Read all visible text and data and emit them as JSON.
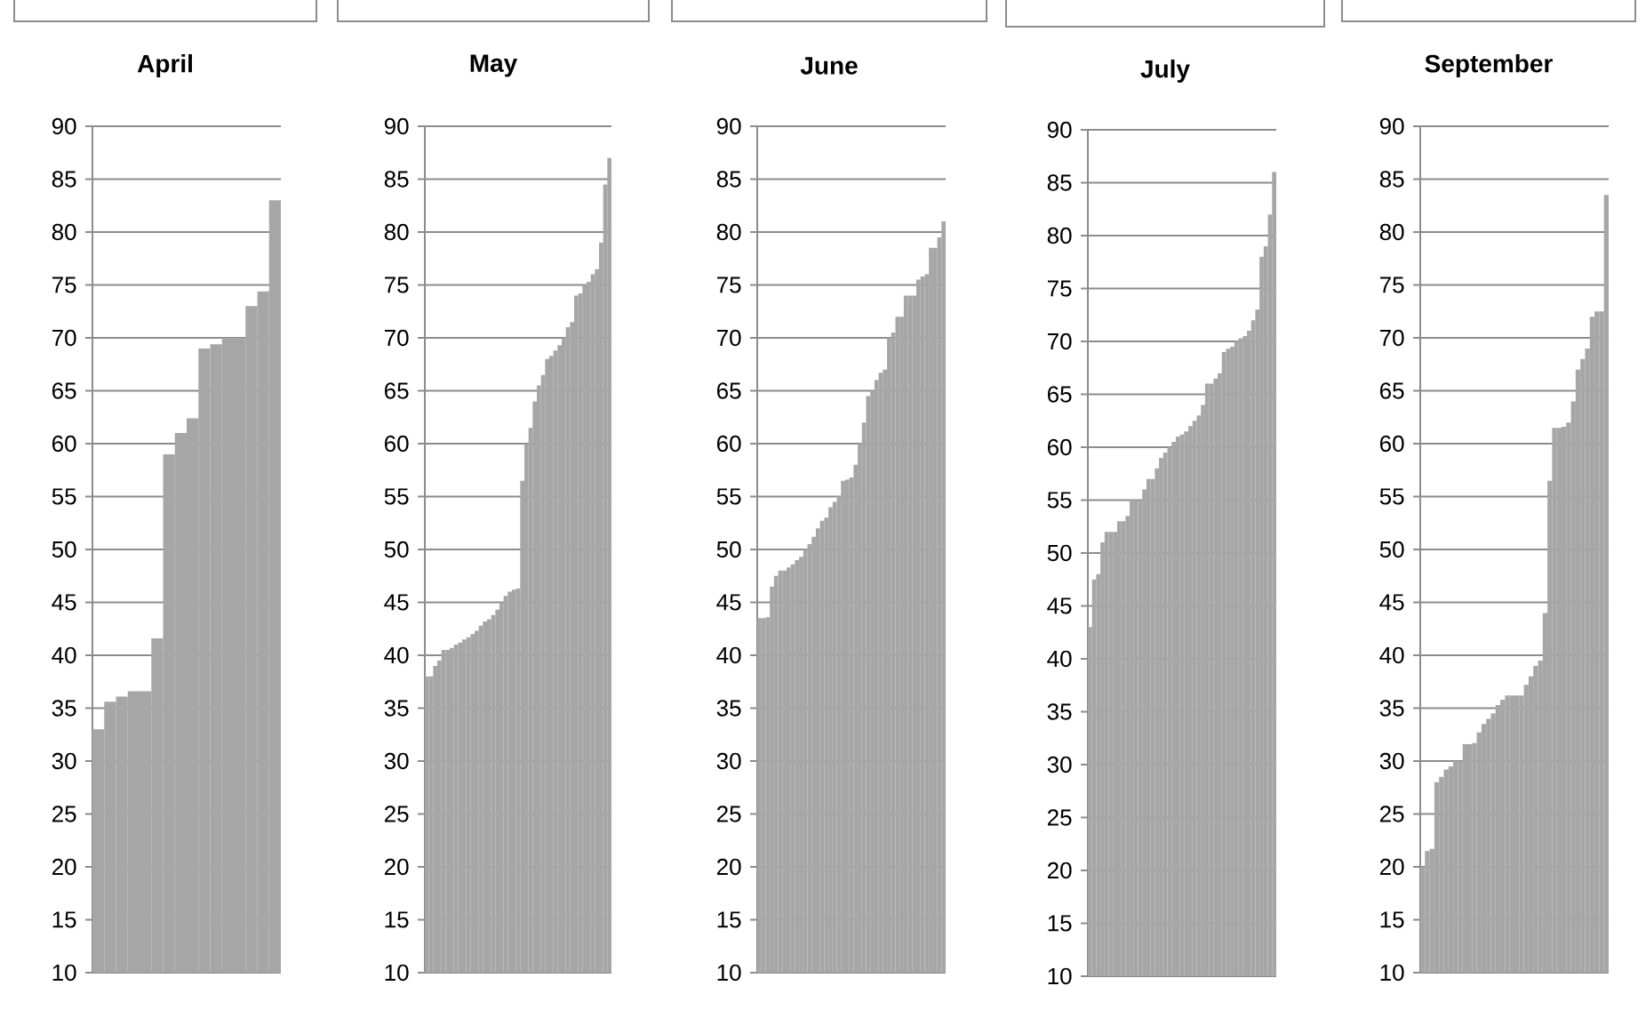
{
  "chart_data": [
    {
      "type": "bar",
      "title": "April",
      "categories": [
        null,
        null,
        null,
        null,
        null,
        null,
        null,
        null,
        null,
        null,
        null,
        null,
        null,
        null,
        null,
        null
      ],
      "values": [
        33,
        35.6,
        36.1,
        36.6,
        36.6,
        41.6,
        59,
        61,
        62.4,
        69,
        69.4,
        70,
        70,
        73,
        74.4,
        83
      ],
      "color": "#a6a6a6",
      "ylim": [
        10,
        90
      ],
      "yticks": [
        10,
        15,
        20,
        25,
        30,
        35,
        40,
        45,
        50,
        55,
        60,
        65,
        70,
        75,
        80,
        85,
        90
      ],
      "grid": "y"
    },
    {
      "type": "bar",
      "title": "May",
      "categories": [
        null,
        null,
        null,
        null,
        null,
        null,
        null,
        null,
        null,
        null,
        null,
        null,
        null,
        null,
        null,
        null,
        null,
        null,
        null,
        null,
        null,
        null,
        null,
        null,
        null,
        null,
        null,
        null,
        null,
        null,
        null,
        null,
        null,
        null,
        null,
        null,
        null,
        null,
        null,
        null,
        null,
        null,
        null,
        null,
        null
      ],
      "values": [
        38,
        38,
        39,
        39.5,
        40.5,
        40.5,
        40.7,
        41,
        41.2,
        41.5,
        41.7,
        42,
        42.3,
        42.8,
        43.2,
        43.4,
        43.8,
        44.3,
        45,
        45.6,
        46,
        46.2,
        46.3,
        56.5,
        60,
        61.5,
        64,
        65.5,
        66.5,
        68,
        68.3,
        68.8,
        69.3,
        70,
        71,
        71.5,
        74,
        74.2,
        75,
        75.3,
        76,
        76.5,
        79,
        84.5,
        87
      ],
      "color": "#a6a6a6",
      "ylim": [
        10,
        90
      ],
      "yticks": [
        10,
        15,
        20,
        25,
        30,
        35,
        40,
        45,
        50,
        55,
        60,
        65,
        70,
        75,
        80,
        85,
        90
      ],
      "grid": "y"
    },
    {
      "type": "bar",
      "title": "June",
      "categories": [
        null,
        null,
        null,
        null,
        null,
        null,
        null,
        null,
        null,
        null,
        null,
        null,
        null,
        null,
        null,
        null,
        null,
        null,
        null,
        null,
        null,
        null,
        null,
        null,
        null,
        null,
        null,
        null,
        null,
        null,
        null,
        null,
        null,
        null,
        null,
        null,
        null,
        null,
        null,
        null,
        null,
        null,
        null,
        null,
        null
      ],
      "values": [
        43.5,
        43.5,
        43.6,
        46.5,
        47.5,
        48,
        48,
        48.3,
        48.6,
        49,
        49.3,
        50,
        50.5,
        51.2,
        52,
        52.7,
        53,
        54,
        54.5,
        55,
        56.5,
        56.6,
        56.8,
        58,
        60,
        62,
        64.5,
        65,
        66,
        66.7,
        67,
        70,
        70.5,
        72,
        72,
        74,
        74,
        74,
        75.5,
        75.8,
        76,
        78.5,
        78.5,
        79.5,
        81
      ],
      "color": "#a6a6a6",
      "ylim": [
        10,
        90
      ],
      "yticks": [
        10,
        15,
        20,
        25,
        30,
        35,
        40,
        45,
        50,
        55,
        60,
        65,
        70,
        75,
        80,
        85,
        90
      ],
      "grid": "y"
    },
    {
      "type": "bar",
      "title": "July",
      "categories": [
        null,
        null,
        null,
        null,
        null,
        null,
        null,
        null,
        null,
        null,
        null,
        null,
        null,
        null,
        null,
        null,
        null,
        null,
        null,
        null,
        null,
        null,
        null,
        null,
        null,
        null,
        null,
        null,
        null,
        null,
        null,
        null,
        null,
        null,
        null,
        null,
        null,
        null,
        null,
        null,
        null,
        null,
        null,
        null,
        null
      ],
      "values": [
        43,
        47.5,
        48,
        51,
        52,
        52,
        52,
        53,
        53,
        53.5,
        55,
        55,
        55,
        56,
        57,
        57,
        58,
        59,
        59.5,
        60,
        60.5,
        61,
        61.2,
        61.5,
        62,
        62.5,
        63,
        64,
        66,
        66,
        66.5,
        67,
        69,
        69.3,
        69.5,
        70,
        70.3,
        70.5,
        71,
        72,
        73,
        78,
        79,
        82,
        86
      ],
      "color": "#a6a6a6",
      "ylim": [
        10,
        90
      ],
      "yticks": [
        10,
        15,
        20,
        25,
        30,
        35,
        40,
        45,
        50,
        55,
        60,
        65,
        70,
        75,
        80,
        85,
        90
      ],
      "grid": "y"
    },
    {
      "type": "bar",
      "title": "September",
      "categories": [
        null,
        null,
        null,
        null,
        null,
        null,
        null,
        null,
        null,
        null,
        null,
        null,
        null,
        null,
        null,
        null,
        null,
        null,
        null,
        null,
        null,
        null,
        null,
        null,
        null,
        null,
        null,
        null,
        null,
        null,
        null,
        null,
        null,
        null,
        null,
        null,
        null,
        null,
        null,
        null
      ],
      "values": [
        20,
        21.5,
        21.7,
        28,
        28.5,
        29.2,
        29.5,
        30,
        30,
        31.6,
        31.6,
        31.7,
        32.7,
        33.5,
        34,
        34.5,
        35.3,
        35.8,
        36.2,
        36.2,
        36.2,
        36.2,
        37.2,
        38,
        39,
        39.5,
        44,
        56.5,
        61.5,
        61.5,
        61.6,
        62,
        64,
        67,
        68,
        69,
        72,
        72.5,
        72.5,
        83.5
      ],
      "color": "#a6a6a6",
      "ylim": [
        10,
        90
      ],
      "yticks": [
        10,
        15,
        20,
        25,
        30,
        35,
        40,
        45,
        50,
        55,
        60,
        65,
        70,
        75,
        80,
        85,
        90
      ],
      "grid": "y"
    }
  ]
}
